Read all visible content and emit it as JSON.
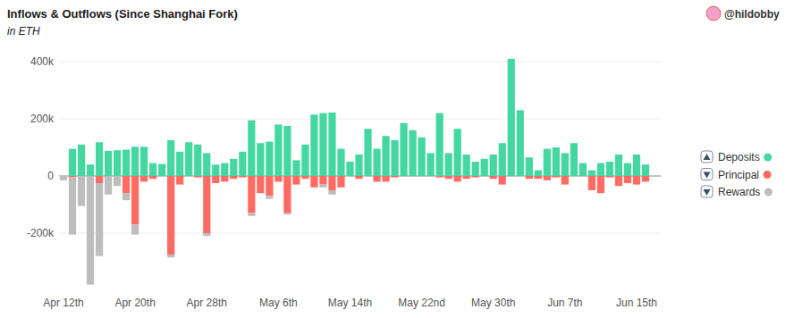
{
  "chart_data": {
    "type": "bar",
    "title": "Inflows & Outflows (Since Shanghai Fork)",
    "subtitle": "in ETH",
    "annotations": [
      "@hildobby"
    ],
    "stacked": true,
    "grid": true,
    "legend": "right",
    "categories": [
      "Apr 12th",
      null,
      null,
      null,
      null,
      null,
      null,
      null,
      "Apr 20th",
      null,
      null,
      null,
      null,
      null,
      null,
      null,
      "Apr 28th",
      null,
      null,
      null,
      null,
      null,
      null,
      null,
      "May 6th",
      null,
      null,
      null,
      null,
      null,
      null,
      null,
      "May 14th",
      null,
      null,
      null,
      null,
      null,
      null,
      null,
      "May 22nd",
      null,
      null,
      null,
      null,
      null,
      null,
      null,
      "May 30th",
      null,
      null,
      null,
      null,
      null,
      null,
      null,
      "Jun 7th",
      null,
      null,
      null,
      null,
      null,
      null,
      null,
      "Jun 15th",
      null
    ],
    "series": [
      {
        "name": "Deposits",
        "color": "#44d7a0",
        "values": [
          0,
          95000,
          110000,
          40000,
          118000,
          88000,
          90000,
          92000,
          102000,
          102000,
          45000,
          42000,
          125000,
          85000,
          118000,
          110000,
          80000,
          40000,
          45000,
          60000,
          85000,
          195000,
          115000,
          120000,
          180000,
          175000,
          55000,
          110000,
          215000,
          220000,
          222000,
          95000,
          50000,
          75000,
          165000,
          95000,
          140000,
          125000,
          185000,
          160000,
          135000,
          80000,
          220000,
          80000,
          165000,
          75000,
          50000,
          60000,
          75000,
          115000,
          410000,
          230000,
          65000,
          20000,
          95000,
          100000,
          80000,
          115000,
          45000,
          20000,
          45000,
          50000,
          75000,
          45000,
          75000,
          40000
        ]
      },
      {
        "name": "Principal",
        "color": "#ff6b63",
        "values": [
          0,
          -5000,
          0,
          0,
          -25000,
          0,
          0,
          -60000,
          -170000,
          -20000,
          -10000,
          0,
          -275000,
          -30000,
          0,
          -5000,
          -200000,
          -25000,
          -20000,
          -10000,
          -5000,
          -130000,
          -60000,
          -70000,
          -20000,
          -130000,
          -30000,
          -10000,
          -40000,
          -30000,
          -50000,
          -40000,
          0,
          -10000,
          0,
          -20000,
          -20000,
          -5000,
          0,
          0,
          0,
          0,
          -5000,
          -10000,
          -20000,
          -10000,
          -5000,
          0,
          -10000,
          -30000,
          0,
          0,
          -10000,
          -10000,
          -15000,
          -5000,
          -30000,
          0,
          0,
          -50000,
          -60000,
          -5000,
          -35000,
          -25000,
          -30000,
          -20000
        ]
      },
      {
        "name": "Rewards",
        "color": "#bdbdbd",
        "values": [
          -15000,
          -200000,
          -105000,
          -380000,
          -255000,
          -65000,
          -35000,
          -25000,
          -35000,
          0,
          0,
          0,
          -10000,
          0,
          0,
          0,
          -10000,
          0,
          0,
          0,
          0,
          -10000,
          0,
          -10000,
          0,
          -5000,
          0,
          0,
          0,
          -10000,
          -15000,
          0,
          0,
          0,
          0,
          0,
          0,
          0,
          0,
          0,
          0,
          0,
          0,
          0,
          0,
          0,
          0,
          0,
          0,
          0,
          0,
          0,
          0,
          0,
          0,
          0,
          0,
          0,
          0,
          0,
          0,
          0,
          0,
          0,
          0,
          0
        ]
      }
    ],
    "ylim": [
      -400000,
      450000
    ],
    "yticks": [
      {
        "value": -200000,
        "label": "-200k"
      },
      0,
      {
        "value": 200000,
        "label": "200k"
      },
      {
        "value": 400000,
        "label": "400k"
      }
    ]
  }
}
